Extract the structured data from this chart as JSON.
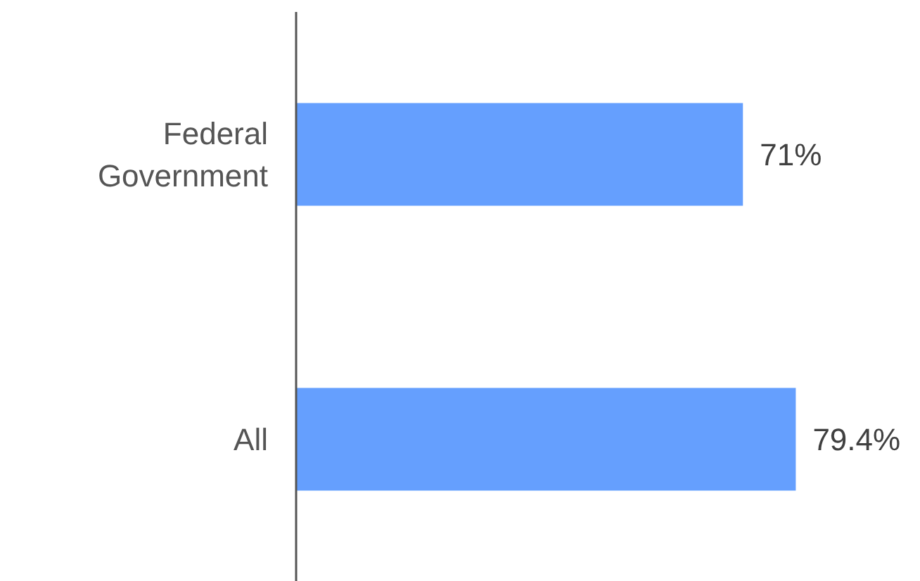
{
  "chart_data": {
    "type": "bar",
    "orientation": "horizontal",
    "categories": [
      "Federal Government",
      "All"
    ],
    "values": [
      71,
      79.4
    ],
    "value_labels": [
      "71%",
      "79.4%"
    ],
    "color": "#659ffe"
  }
}
